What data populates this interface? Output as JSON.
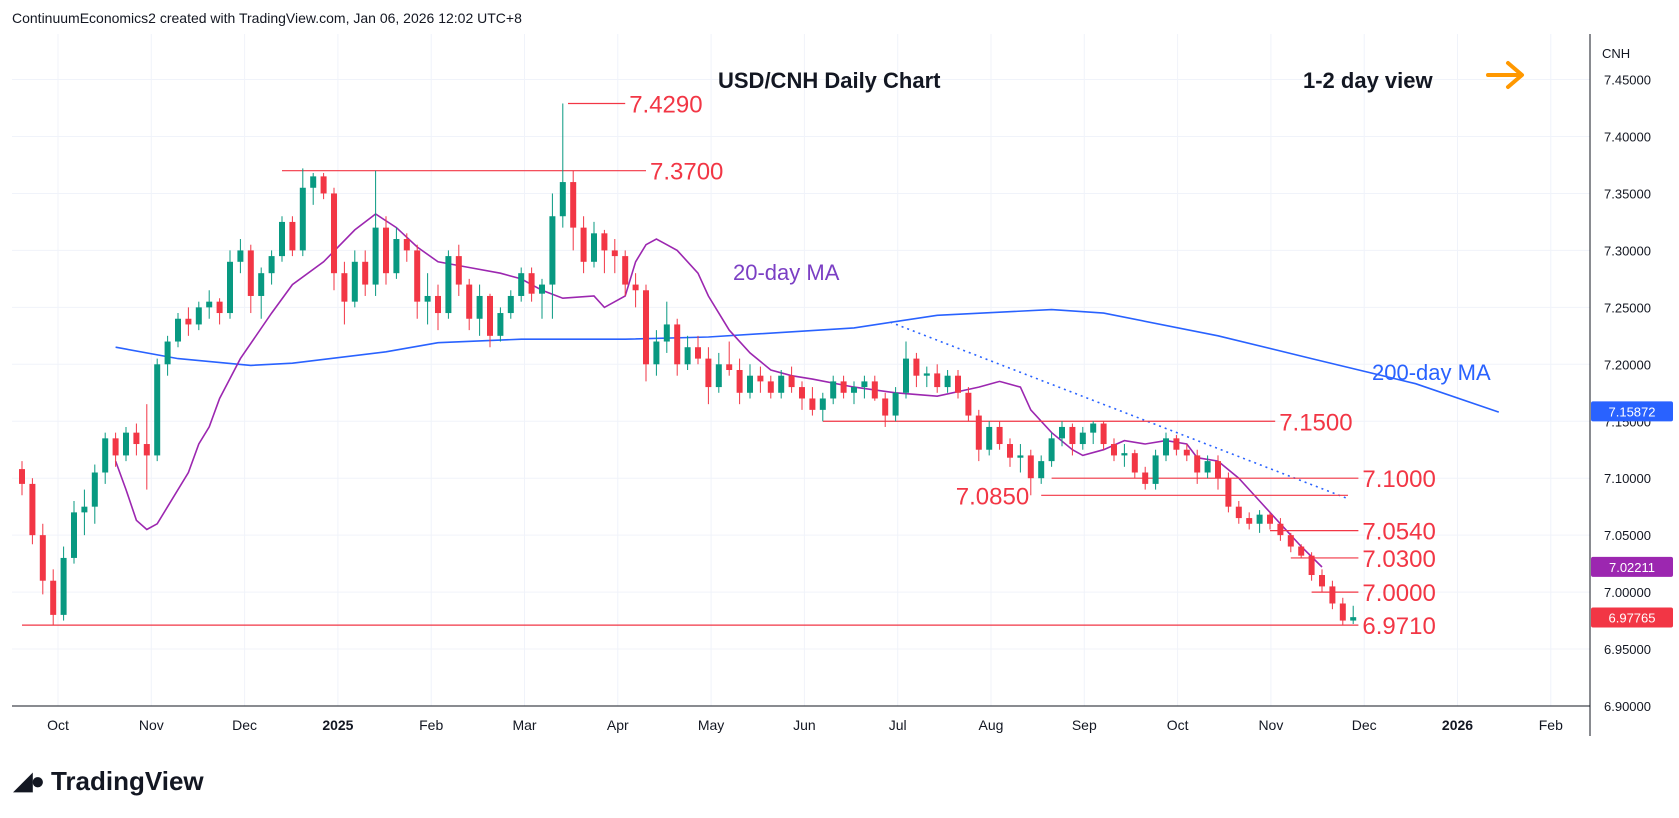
{
  "header": {
    "text": "ContinuumEconomics2 created with TradingView.com, Jan 06, 2026 12:02 UTC+8"
  },
  "brand": {
    "logo_icon": "tradingview-logo-icon",
    "name": "TradingView"
  },
  "chart_data": {
    "type": "candlestick",
    "title": "USD/CNH Daily Chart",
    "view_label": "1-2 day view",
    "view_icon": "arrow-right-icon",
    "currency": "CNH",
    "y_ticks": [
      "7.45000",
      "7.40000",
      "7.35000",
      "7.30000",
      "7.25000",
      "7.20000",
      "7.15000",
      "7.10000",
      "7.05000",
      "7.00000",
      "6.95000",
      "6.90000"
    ],
    "ylim": [
      6.9,
      7.49
    ],
    "x_labels": [
      "Oct",
      "Nov",
      "Dec",
      "2025",
      "Feb",
      "Mar",
      "Apr",
      "May",
      "Jun",
      "Jul",
      "Aug",
      "Sep",
      "Oct",
      "Nov",
      "Dec",
      "2026",
      "Feb"
    ],
    "x_label_bold": [
      "2025",
      "2026"
    ],
    "levels": [
      {
        "label": "7.4290",
        "value": 7.429
      },
      {
        "label": "7.3700",
        "value": 7.37
      },
      {
        "label": "7.1500",
        "value": 7.15
      },
      {
        "label": "7.1000",
        "value": 7.1
      },
      {
        "label": "7.0850",
        "value": 7.085
      },
      {
        "label": "7.0540",
        "value": 7.054
      },
      {
        "label": "7.0300",
        "value": 7.03
      },
      {
        "label": "7.0000",
        "value": 7.0
      },
      {
        "label": "6.9710",
        "value": 6.971
      }
    ],
    "ma_labels": {
      "ma20": "20-day MA",
      "ma200": "200-day MA"
    },
    "price_badges": [
      {
        "label": "7.15872",
        "value": 7.15872,
        "color": "#2962ff"
      },
      {
        "label": "7.02211",
        "value": 7.02211,
        "color": "#9c27b0"
      },
      {
        "label": "6.97765",
        "value": 6.97765,
        "color": "#f23645"
      }
    ],
    "ma200_series": [
      [
        9.0,
        7.215
      ],
      [
        15,
        7.205
      ],
      [
        22,
        7.199
      ],
      [
        26,
        7.201
      ],
      [
        35,
        7.211
      ],
      [
        40,
        7.219
      ],
      [
        48,
        7.222
      ],
      [
        58,
        7.222
      ],
      [
        66,
        7.224
      ],
      [
        80,
        7.232
      ],
      [
        88,
        7.243
      ],
      [
        99,
        7.248
      ],
      [
        104,
        7.245
      ],
      [
        115,
        7.225
      ],
      [
        124,
        7.205
      ],
      [
        134,
        7.183
      ],
      [
        142,
        7.158
      ]
    ],
    "ma20_series": [
      [
        9.0,
        7.115
      ],
      [
        10,
        7.09
      ],
      [
        11,
        7.063
      ],
      [
        12,
        7.055
      ],
      [
        13,
        7.06
      ],
      [
        14,
        7.075
      ],
      [
        16,
        7.105
      ],
      [
        17,
        7.13
      ],
      [
        18,
        7.145
      ],
      [
        19,
        7.17
      ],
      [
        21,
        7.205
      ],
      [
        24,
        7.245
      ],
      [
        26,
        7.27
      ],
      [
        29,
        7.29
      ],
      [
        32,
        7.318
      ],
      [
        34,
        7.332
      ],
      [
        36,
        7.32
      ],
      [
        38,
        7.303
      ],
      [
        40,
        7.29
      ],
      [
        43,
        7.285
      ],
      [
        46,
        7.28
      ],
      [
        48,
        7.275
      ],
      [
        50,
        7.265
      ],
      [
        52,
        7.258
      ],
      [
        55,
        7.26
      ],
      [
        56,
        7.25
      ],
      [
        58,
        7.26
      ],
      [
        59,
        7.29
      ],
      [
        60,
        7.305
      ],
      [
        61,
        7.31
      ],
      [
        62,
        7.305
      ],
      [
        63,
        7.3
      ],
      [
        65,
        7.28
      ],
      [
        66,
        7.26
      ],
      [
        67,
        7.245
      ],
      [
        68,
        7.23
      ],
      [
        70,
        7.21
      ],
      [
        72,
        7.195
      ],
      [
        74,
        7.19
      ],
      [
        76,
        7.187
      ],
      [
        80,
        7.18
      ],
      [
        84,
        7.175
      ],
      [
        88,
        7.172
      ],
      [
        92,
        7.18
      ],
      [
        94,
        7.185
      ],
      [
        96,
        7.18
      ],
      [
        97,
        7.16
      ],
      [
        99,
        7.14
      ],
      [
        101,
        7.125
      ],
      [
        102,
        7.12
      ],
      [
        104,
        7.125
      ],
      [
        106,
        7.133
      ],
      [
        108,
        7.13
      ],
      [
        110,
        7.133
      ],
      [
        112,
        7.13
      ],
      [
        113,
        7.118
      ],
      [
        115,
        7.115
      ],
      [
        117,
        7.1
      ],
      [
        119,
        7.08
      ],
      [
        121,
        7.06
      ],
      [
        123,
        7.04
      ],
      [
        125,
        7.022
      ]
    ],
    "trendline": [
      [
        83.5,
        7.237
      ],
      [
        127.5,
        7.082
      ]
    ],
    "candles": [
      [
        7.108,
        7.115,
        7.085,
        7.095
      ],
      [
        7.095,
        7.1,
        7.042,
        7.05
      ],
      [
        7.05,
        7.06,
        6.998,
        7.01
      ],
      [
        7.01,
        7.02,
        6.971,
        6.98
      ],
      [
        6.98,
        7.04,
        6.975,
        7.03
      ],
      [
        7.03,
        7.08,
        7.025,
        7.07
      ],
      [
        7.07,
        7.09,
        7.05,
        7.075
      ],
      [
        7.075,
        7.112,
        7.06,
        7.105
      ],
      [
        7.105,
        7.14,
        7.095,
        7.135
      ],
      [
        7.135,
        7.14,
        7.11,
        7.12
      ],
      [
        7.12,
        7.145,
        7.115,
        7.14
      ],
      [
        7.14,
        7.148,
        7.12,
        7.13
      ],
      [
        7.13,
        7.165,
        7.09,
        7.12
      ],
      [
        7.12,
        7.205,
        7.115,
        7.2
      ],
      [
        7.2,
        7.225,
        7.19,
        7.22
      ],
      [
        7.22,
        7.245,
        7.215,
        7.24
      ],
      [
        7.24,
        7.25,
        7.225,
        7.235
      ],
      [
        7.235,
        7.255,
        7.23,
        7.25
      ],
      [
        7.25,
        7.265,
        7.24,
        7.255
      ],
      [
        7.255,
        7.258,
        7.235,
        7.245
      ],
      [
        7.245,
        7.3,
        7.24,
        7.29
      ],
      [
        7.29,
        7.31,
        7.28,
        7.3
      ],
      [
        7.3,
        7.305,
        7.245,
        7.26
      ],
      [
        7.26,
        7.285,
        7.24,
        7.28
      ],
      [
        7.28,
        7.3,
        7.27,
        7.295
      ],
      [
        7.295,
        7.33,
        7.29,
        7.325
      ],
      [
        7.325,
        7.33,
        7.295,
        7.3
      ],
      [
        7.3,
        7.372,
        7.295,
        7.355
      ],
      [
        7.355,
        7.368,
        7.34,
        7.365
      ],
      [
        7.365,
        7.368,
        7.345,
        7.35
      ],
      [
        7.35,
        7.355,
        7.265,
        7.28
      ],
      [
        7.28,
        7.29,
        7.235,
        7.255
      ],
      [
        7.255,
        7.3,
        7.25,
        7.29
      ],
      [
        7.29,
        7.3,
        7.26,
        7.27
      ],
      [
        7.27,
        7.37,
        7.26,
        7.32
      ],
      [
        7.32,
        7.33,
        7.27,
        7.28
      ],
      [
        7.28,
        7.32,
        7.275,
        7.31
      ],
      [
        7.31,
        7.315,
        7.29,
        7.3
      ],
      [
        7.3,
        7.305,
        7.24,
        7.255
      ],
      [
        7.255,
        7.28,
        7.235,
        7.26
      ],
      [
        7.26,
        7.27,
        7.23,
        7.245
      ],
      [
        7.245,
        7.3,
        7.24,
        7.295
      ],
      [
        7.295,
        7.305,
        7.26,
        7.27
      ],
      [
        7.27,
        7.275,
        7.23,
        7.24
      ],
      [
        7.24,
        7.27,
        7.225,
        7.26
      ],
      [
        7.26,
        7.262,
        7.215,
        7.225
      ],
      [
        7.225,
        7.25,
        7.22,
        7.245
      ],
      [
        7.245,
        7.265,
        7.24,
        7.26
      ],
      [
        7.26,
        7.285,
        7.255,
        7.28
      ],
      [
        7.28,
        7.285,
        7.255,
        7.262
      ],
      [
        7.262,
        7.275,
        7.24,
        7.27
      ],
      [
        7.27,
        7.35,
        7.24,
        7.33
      ],
      [
        7.33,
        7.429,
        7.32,
        7.36
      ],
      [
        7.36,
        7.37,
        7.3,
        7.32
      ],
      [
        7.32,
        7.33,
        7.28,
        7.29
      ],
      [
        7.29,
        7.325,
        7.285,
        7.315
      ],
      [
        7.315,
        7.318,
        7.28,
        7.3
      ],
      [
        7.3,
        7.31,
        7.28,
        7.295
      ],
      [
        7.295,
        7.3,
        7.26,
        7.27
      ],
      [
        7.27,
        7.28,
        7.25,
        7.265
      ],
      [
        7.265,
        7.27,
        7.185,
        7.2
      ],
      [
        7.2,
        7.23,
        7.19,
        7.22
      ],
      [
        7.22,
        7.255,
        7.21,
        7.235
      ],
      [
        7.235,
        7.24,
        7.19,
        7.2
      ],
      [
        7.2,
        7.225,
        7.195,
        7.215
      ],
      [
        7.215,
        7.225,
        7.2,
        7.205
      ],
      [
        7.205,
        7.215,
        7.165,
        7.18
      ],
      [
        7.18,
        7.21,
        7.175,
        7.2
      ],
      [
        7.2,
        7.22,
        7.19,
        7.195
      ],
      [
        7.195,
        7.205,
        7.165,
        7.175
      ],
      [
        7.175,
        7.2,
        7.17,
        7.19
      ],
      [
        7.19,
        7.198,
        7.175,
        7.185
      ],
      [
        7.185,
        7.19,
        7.17,
        7.175
      ],
      [
        7.175,
        7.195,
        7.17,
        7.19
      ],
      [
        7.19,
        7.198,
        7.175,
        7.18
      ],
      [
        7.18,
        7.185,
        7.16,
        7.17
      ],
      [
        7.17,
        7.18,
        7.155,
        7.16
      ],
      [
        7.16,
        7.175,
        7.15,
        7.17
      ],
      [
        7.17,
        7.19,
        7.165,
        7.185
      ],
      [
        7.185,
        7.19,
        7.17,
        7.175
      ],
      [
        7.175,
        7.185,
        7.165,
        7.18
      ],
      [
        7.18,
        7.19,
        7.17,
        7.185
      ],
      [
        7.185,
        7.19,
        7.168,
        7.17
      ],
      [
        7.17,
        7.175,
        7.145,
        7.155
      ],
      [
        7.155,
        7.18,
        7.15,
        7.175
      ],
      [
        7.175,
        7.22,
        7.17,
        7.205
      ],
      [
        7.205,
        7.21,
        7.18,
        7.19
      ],
      [
        7.19,
        7.198,
        7.18,
        7.192
      ],
      [
        7.192,
        7.2,
        7.175,
        7.18
      ],
      [
        7.18,
        7.195,
        7.175,
        7.19
      ],
      [
        7.19,
        7.195,
        7.17,
        7.175
      ],
      [
        7.175,
        7.18,
        7.15,
        7.155
      ],
      [
        7.155,
        7.16,
        7.115,
        7.125
      ],
      [
        7.125,
        7.15,
        7.12,
        7.145
      ],
      [
        7.145,
        7.15,
        7.125,
        7.13
      ],
      [
        7.13,
        7.135,
        7.11,
        7.118
      ],
      [
        7.118,
        7.13,
        7.105,
        7.12
      ],
      [
        7.12,
        7.125,
        7.085,
        7.1
      ],
      [
        7.1,
        7.12,
        7.095,
        7.115
      ],
      [
        7.115,
        7.14,
        7.11,
        7.135
      ],
      [
        7.135,
        7.15,
        7.128,
        7.145
      ],
      [
        7.145,
        7.148,
        7.12,
        7.13
      ],
      [
        7.13,
        7.145,
        7.125,
        7.14
      ],
      [
        7.14,
        7.15,
        7.13,
        7.148
      ],
      [
        7.148,
        7.15,
        7.125,
        7.13
      ],
      [
        7.13,
        7.135,
        7.115,
        7.12
      ],
      [
        7.12,
        7.13,
        7.11,
        7.122
      ],
      [
        7.122,
        7.125,
        7.1,
        7.105
      ],
      [
        7.105,
        7.11,
        7.09,
        7.095
      ],
      [
        7.095,
        7.125,
        7.09,
        7.12
      ],
      [
        7.12,
        7.14,
        7.115,
        7.135
      ],
      [
        7.135,
        7.138,
        7.12,
        7.125
      ],
      [
        7.125,
        7.13,
        7.115,
        7.12
      ],
      [
        7.12,
        7.125,
        7.095,
        7.105
      ],
      [
        7.105,
        7.12,
        7.1,
        7.115
      ],
      [
        7.115,
        7.12,
        7.09,
        7.1
      ],
      [
        7.1,
        7.105,
        7.07,
        7.075
      ],
      [
        7.075,
        7.08,
        7.06,
        7.065
      ],
      [
        7.065,
        7.07,
        7.055,
        7.06
      ],
      [
        7.06,
        7.072,
        7.052,
        7.068
      ],
      [
        7.068,
        7.07,
        7.055,
        7.06
      ],
      [
        7.06,
        7.065,
        7.045,
        7.05
      ],
      [
        7.05,
        7.052,
        7.035,
        7.04
      ],
      [
        7.04,
        7.042,
        7.03,
        7.032
      ],
      [
        7.032,
        7.035,
        7.01,
        7.015
      ],
      [
        7.015,
        7.02,
        7.0,
        7.005
      ],
      [
        7.005,
        7.01,
        6.985,
        6.99
      ],
      [
        6.99,
        6.995,
        6.971,
        6.975
      ],
      [
        6.975,
        6.988,
        6.972,
        6.978
      ]
    ]
  }
}
